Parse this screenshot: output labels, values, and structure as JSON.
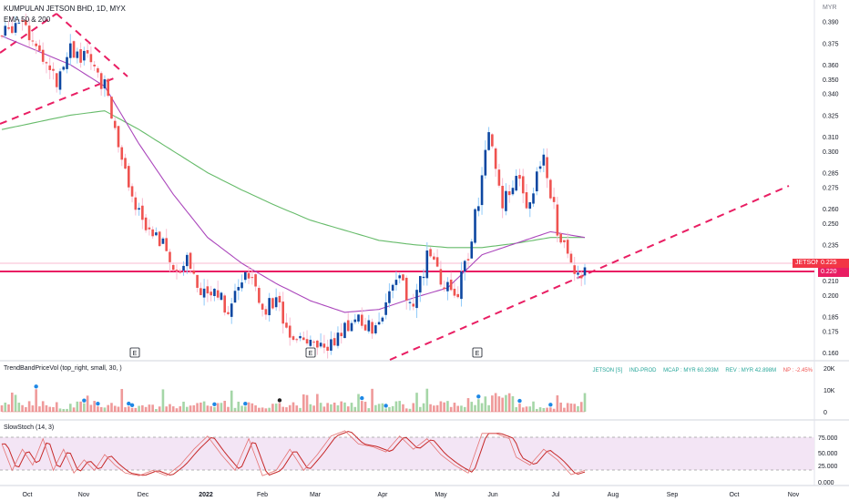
{
  "header": {
    "symbol_line": "KUMPULAN JETSON BHD, 1D, MYX",
    "ema_label": "EMA 50 & 200",
    "currency": "MYR"
  },
  "volume_pane": {
    "label": "TrendBandPriceVol (top_right, small, 30, )",
    "stats": {
      "ticker": "JETSON [S]",
      "sector": "IND-PROD",
      "mcap": "MCAP : MYR 60.293M",
      "rev": "REV : MYR 42.898M",
      "np": "NP : -2.45%"
    },
    "y_ticks": [
      "20K",
      "10K",
      "0"
    ]
  },
  "stoch_pane": {
    "label": "SlowStoch (14, 3)",
    "y_ticks": [
      "75.000",
      "50.000",
      "25.000",
      "0.000"
    ]
  },
  "price_tags": {
    "symbol": "JETSON",
    "price": "0.225",
    "level": "0.220"
  },
  "colors": {
    "up": "#0d47a1",
    "down": "#ef5350",
    "ema50": "#ab47bc",
    "ema200": "#66bb6a",
    "support": "#e91e63",
    "stoch_band": "#f3e5f5",
    "tag": "#f23645"
  },
  "chart_data": {
    "type": "candlestick",
    "x_ticks": [
      "Oct",
      "Nov",
      "Dec",
      "2022",
      "Feb",
      "Mar",
      "Apr",
      "May",
      "Jun",
      "Jul",
      "Aug",
      "Sep",
      "Oct",
      "Nov"
    ],
    "y_ticks": [
      0.39,
      0.375,
      0.36,
      0.35,
      0.34,
      0.325,
      0.31,
      0.3,
      0.285,
      0.275,
      0.26,
      0.25,
      0.235,
      0.22,
      0.21,
      0.2,
      0.185,
      0.175,
      0.16
    ],
    "y_range": [
      0.155,
      0.405
    ],
    "last_price": 0.225,
    "support_level": 0.22,
    "earnings_markers": [
      "E",
      "E",
      "E"
    ],
    "price_anchors": [
      [
        0,
        0.38
      ],
      [
        6,
        0.395
      ],
      [
        10,
        0.37
      ],
      [
        16,
        0.35
      ],
      [
        20,
        0.372
      ],
      [
        26,
        0.36
      ],
      [
        30,
        0.345
      ],
      [
        34,
        0.3
      ],
      [
        38,
        0.265
      ],
      [
        42,
        0.25
      ],
      [
        46,
        0.24
      ],
      [
        50,
        0.215
      ],
      [
        54,
        0.225
      ],
      [
        58,
        0.2
      ],
      [
        62,
        0.205
      ],
      [
        66,
        0.19
      ],
      [
        72,
        0.215
      ],
      [
        76,
        0.19
      ],
      [
        80,
        0.195
      ],
      [
        84,
        0.175
      ],
      [
        88,
        0.17
      ],
      [
        92,
        0.16
      ],
      [
        96,
        0.165
      ],
      [
        100,
        0.175
      ],
      [
        104,
        0.185
      ],
      [
        108,
        0.175
      ],
      [
        112,
        0.195
      ],
      [
        116,
        0.21
      ],
      [
        120,
        0.19
      ],
      [
        124,
        0.228
      ],
      [
        128,
        0.212
      ],
      [
        132,
        0.195
      ],
      [
        136,
        0.228
      ],
      [
        140,
        0.28
      ],
      [
        142,
        0.31
      ],
      [
        146,
        0.265
      ],
      [
        150,
        0.28
      ],
      [
        154,
        0.26
      ],
      [
        156,
        0.29
      ],
      [
        158,
        0.3
      ],
      [
        162,
        0.245
      ],
      [
        164,
        0.24
      ],
      [
        166,
        0.225
      ],
      [
        168,
        0.21
      ],
      [
        170,
        0.225
      ]
    ],
    "ema50_anchors": [
      [
        0,
        0.38
      ],
      [
        20,
        0.36
      ],
      [
        30,
        0.345
      ],
      [
        40,
        0.305
      ],
      [
        50,
        0.27
      ],
      [
        60,
        0.24
      ],
      [
        70,
        0.222
      ],
      [
        80,
        0.208
      ],
      [
        90,
        0.196
      ],
      [
        100,
        0.188
      ],
      [
        110,
        0.19
      ],
      [
        120,
        0.198
      ],
      [
        130,
        0.205
      ],
      [
        140,
        0.228
      ],
      [
        150,
        0.236
      ],
      [
        160,
        0.244
      ],
      [
        170,
        0.24
      ]
    ],
    "ema200_anchors": [
      [
        0,
        0.315
      ],
      [
        20,
        0.325
      ],
      [
        30,
        0.328
      ],
      [
        40,
        0.315
      ],
      [
        50,
        0.3
      ],
      [
        60,
        0.285
      ],
      [
        70,
        0.273
      ],
      [
        80,
        0.262
      ],
      [
        90,
        0.252
      ],
      [
        100,
        0.245
      ],
      [
        110,
        0.238
      ],
      [
        120,
        0.235
      ],
      [
        130,
        0.233
      ],
      [
        140,
        0.233
      ],
      [
        150,
        0.236
      ],
      [
        160,
        0.24
      ],
      [
        170,
        0.24
      ]
    ],
    "stoch_anchors": [
      [
        0,
        70
      ],
      [
        3,
        20
      ],
      [
        6,
        60
      ],
      [
        9,
        30
      ],
      [
        12,
        80
      ],
      [
        15,
        20
      ],
      [
        18,
        60
      ],
      [
        21,
        15
      ],
      [
        24,
        40
      ],
      [
        27,
        20
      ],
      [
        30,
        50
      ],
      [
        33,
        30
      ],
      [
        36,
        15
      ],
      [
        40,
        10
      ],
      [
        44,
        20
      ],
      [
        48,
        10
      ],
      [
        52,
        30
      ],
      [
        56,
        60
      ],
      [
        60,
        85
      ],
      [
        64,
        50
      ],
      [
        68,
        20
      ],
      [
        72,
        80
      ],
      [
        76,
        10
      ],
      [
        80,
        20
      ],
      [
        84,
        60
      ],
      [
        88,
        20
      ],
      [
        92,
        50
      ],
      [
        96,
        85
      ],
      [
        100,
        95
      ],
      [
        104,
        70
      ],
      [
        108,
        65
      ],
      [
        112,
        55
      ],
      [
        116,
        85
      ],
      [
        120,
        60
      ],
      [
        124,
        80
      ],
      [
        128,
        50
      ],
      [
        132,
        30
      ],
      [
        136,
        15
      ],
      [
        140,
        90
      ],
      [
        144,
        90
      ],
      [
        148,
        80
      ],
      [
        150,
        45
      ],
      [
        154,
        30
      ],
      [
        158,
        60
      ],
      [
        162,
        40
      ],
      [
        166,
        12
      ],
      [
        170,
        20
      ]
    ]
  }
}
